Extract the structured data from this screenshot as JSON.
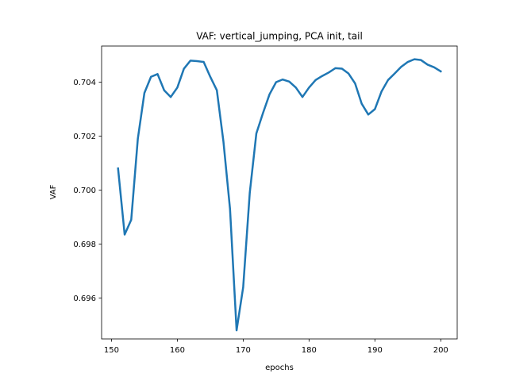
{
  "chart_data": {
    "type": "line",
    "title": "VAF: vertical_jumping, PCA init, tail",
    "xlabel": "epochs",
    "ylabel": "VAF",
    "xlim": [
      148.5,
      202.5
    ],
    "ylim": [
      0.69448,
      0.70534
    ],
    "xticks": [
      150,
      160,
      170,
      180,
      190,
      200
    ],
    "xtick_labels": [
      "150",
      "160",
      "170",
      "180",
      "190",
      "200"
    ],
    "yticks": [
      0.696,
      0.698,
      0.7,
      0.702,
      0.704
    ],
    "ytick_labels": [
      "0.696",
      "0.698",
      "0.700",
      "0.702",
      "0.704"
    ],
    "grid": false,
    "series": [
      {
        "color": "#1f77b4",
        "x": [
          151,
          152,
          153,
          154,
          155,
          156,
          157,
          158,
          159,
          160,
          161,
          162,
          163,
          164,
          165,
          166,
          167,
          168,
          169,
          170,
          171,
          172,
          173,
          174,
          175,
          176,
          177,
          178,
          179,
          180,
          181,
          182,
          183,
          184,
          185,
          186,
          187,
          188,
          189,
          190,
          191,
          192,
          193,
          194,
          195,
          196,
          197,
          198,
          199,
          200
        ],
        "values": [
          0.7008,
          0.69835,
          0.6989,
          0.7019,
          0.7036,
          0.7042,
          0.7043,
          0.7037,
          0.70345,
          0.7038,
          0.7045,
          0.7048,
          0.70478,
          0.70475,
          0.7042,
          0.7037,
          0.7018,
          0.6993,
          0.6948,
          0.6964,
          0.6999,
          0.7021,
          0.70285,
          0.70355,
          0.704,
          0.7041,
          0.70402,
          0.7038,
          0.70345,
          0.7038,
          0.70408,
          0.70423,
          0.70436,
          0.70452,
          0.7045,
          0.70432,
          0.70395,
          0.7032,
          0.7028,
          0.703,
          0.70365,
          0.70408,
          0.70432,
          0.70457,
          0.70475,
          0.70485,
          0.70482,
          0.70465,
          0.70455,
          0.7044
        ]
      }
    ]
  }
}
